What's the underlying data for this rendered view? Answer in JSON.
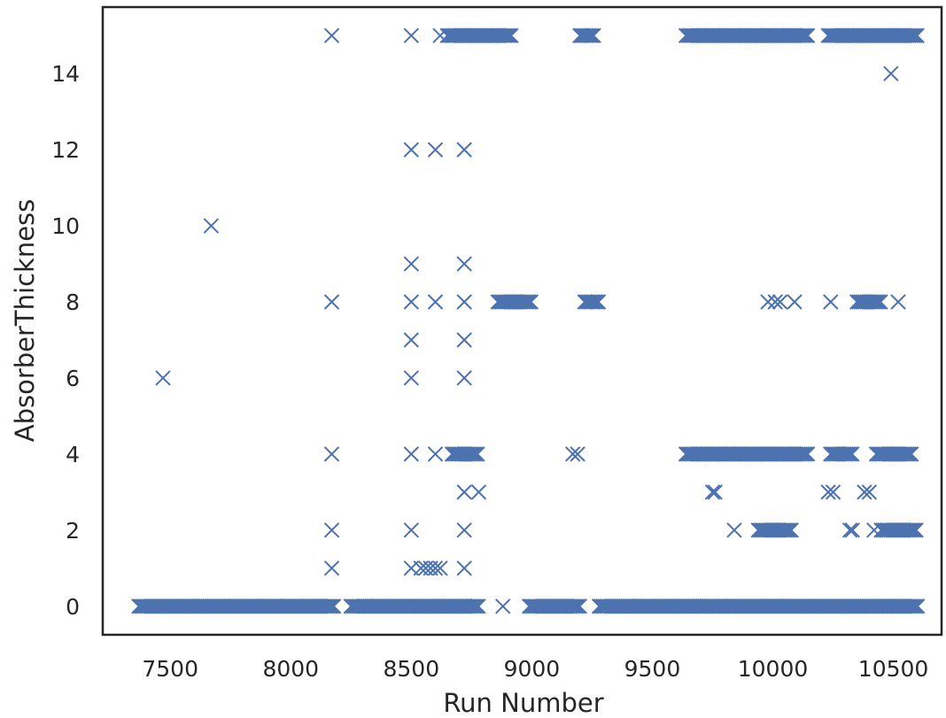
{
  "chart_data": {
    "type": "scatter",
    "title": "",
    "xlabel": "Run Number",
    "ylabel": "AbsorberThickness",
    "xlim": [
      7220,
      10700
    ],
    "ylim": [
      -0.75,
      15.75
    ],
    "xticks": [
      7500,
      8000,
      8500,
      9000,
      9500,
      10000,
      10500
    ],
    "yticks": [
      0,
      2,
      4,
      6,
      8,
      10,
      12,
      14
    ],
    "xtick_labels": [
      "7500",
      "8000",
      "8500",
      "9000",
      "9500",
      "10000",
      "10500"
    ],
    "ytick_labels": [
      "0",
      "2",
      "4",
      "6",
      "8",
      "10",
      "12",
      "14"
    ],
    "grid": false,
    "marker": "x",
    "color": "#4c72b0",
    "series": [
      {
        "ranges": [
          {
            "y": 0,
            "x_start": 7370,
            "x_end": 8180,
            "step": 8
          },
          {
            "y": 0,
            "x_start": 8250,
            "x_end": 8780,
            "step": 8
          },
          {
            "y": 0,
            "x_start": 8990,
            "x_end": 9200,
            "step": 8
          },
          {
            "y": 0,
            "x_start": 9280,
            "x_end": 10600,
            "step": 8
          },
          {
            "y": 15,
            "x_start": 8650,
            "x_end": 8920,
            "step": 8
          },
          {
            "y": 15,
            "x_start": 9200,
            "x_end": 9260,
            "step": 8
          },
          {
            "y": 15,
            "x_start": 9640,
            "x_end": 10150,
            "step": 8
          },
          {
            "y": 15,
            "x_start": 10230,
            "x_end": 10600,
            "step": 8
          },
          {
            "y": 8,
            "x_start": 8860,
            "x_end": 9000,
            "step": 8
          },
          {
            "y": 8,
            "x_start": 9220,
            "x_end": 9280,
            "step": 8
          },
          {
            "y": 8,
            "x_start": 10350,
            "x_end": 10450,
            "step": 8
          },
          {
            "y": 4,
            "x_start": 8670,
            "x_end": 8780,
            "step": 8
          },
          {
            "y": 4,
            "x_start": 9640,
            "x_end": 10150,
            "step": 8
          },
          {
            "y": 4,
            "x_start": 10240,
            "x_end": 10330,
            "step": 8
          },
          {
            "y": 4,
            "x_start": 10430,
            "x_end": 10580,
            "step": 8
          },
          {
            "y": 2,
            "x_start": 9940,
            "x_end": 10080,
            "step": 8
          },
          {
            "y": 2,
            "x_start": 10450,
            "x_end": 10600,
            "step": 8
          }
        ],
        "points": [
          [
            7470,
            6
          ],
          [
            7670,
            10
          ],
          [
            8170,
            15
          ],
          [
            8170,
            8
          ],
          [
            8170,
            4
          ],
          [
            8170,
            2
          ],
          [
            8170,
            1
          ],
          [
            8500,
            15
          ],
          [
            8500,
            12
          ],
          [
            8500,
            9
          ],
          [
            8500,
            8
          ],
          [
            8500,
            7
          ],
          [
            8500,
            6
          ],
          [
            8500,
            4
          ],
          [
            8500,
            2
          ],
          [
            8500,
            1
          ],
          [
            8600,
            12
          ],
          [
            8600,
            8
          ],
          [
            8600,
            4
          ],
          [
            8620,
            15
          ],
          [
            8540,
            1
          ],
          [
            8560,
            1
          ],
          [
            8580,
            1
          ],
          [
            8600,
            1
          ],
          [
            8620,
            1
          ],
          [
            8720,
            12
          ],
          [
            8720,
            9
          ],
          [
            8720,
            8
          ],
          [
            8720,
            7
          ],
          [
            8720,
            6
          ],
          [
            8720,
            3
          ],
          [
            8720,
            2
          ],
          [
            8720,
            1
          ],
          [
            8780,
            3
          ],
          [
            8880,
            0
          ],
          [
            9190,
            4
          ],
          [
            9170,
            4
          ],
          [
            9750,
            3
          ],
          [
            9760,
            3
          ],
          [
            9840,
            2
          ],
          [
            9980,
            8
          ],
          [
            10010,
            8
          ],
          [
            10030,
            8
          ],
          [
            10090,
            8
          ],
          [
            10240,
            8
          ],
          [
            10230,
            3
          ],
          [
            10250,
            3
          ],
          [
            10320,
            2
          ],
          [
            10330,
            2
          ],
          [
            10380,
            3
          ],
          [
            10400,
            3
          ],
          [
            10420,
            2
          ],
          [
            10520,
            8
          ],
          [
            10490,
            14
          ]
        ]
      }
    ]
  }
}
